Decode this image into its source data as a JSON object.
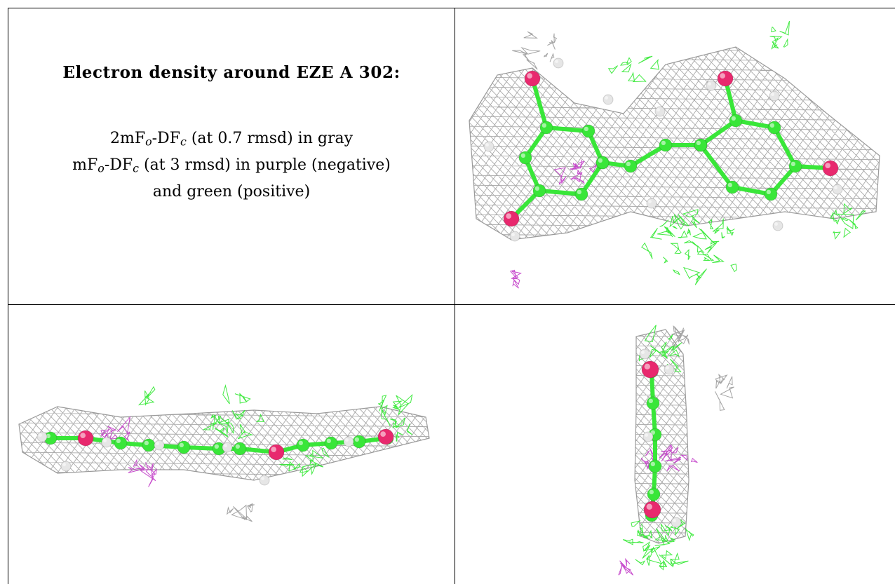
{
  "caption": {
    "title": "Electron density around EZE A 302:",
    "line1": {
      "a": "2mF",
      "a_sub": "o",
      "b": "-DF",
      "b_sub": "c",
      "rest": " (at 0.7 rmsd) in gray"
    },
    "line2": {
      "a": "mF",
      "a_sub": "o",
      "b": "-DF",
      "b_sub": "c",
      "rest": " (at 3 rmsd) in purple (negative)"
    },
    "line3": "and green (positive)"
  },
  "colors": {
    "mesh_gray": "#9a9a9a",
    "mesh_green": "#2ee82e",
    "mesh_purple": "#c23cc8",
    "carbon": "#39e639",
    "oxygen": "#e8296e",
    "hydrogen": "#e6e6e6"
  },
  "views": [
    {
      "name": "view-top-right",
      "description_icon": "molecule-face-view"
    },
    {
      "name": "view-bottom-left",
      "description_icon": "molecule-edge-view"
    },
    {
      "name": "view-bottom-right",
      "description_icon": "molecule-end-view"
    }
  ]
}
